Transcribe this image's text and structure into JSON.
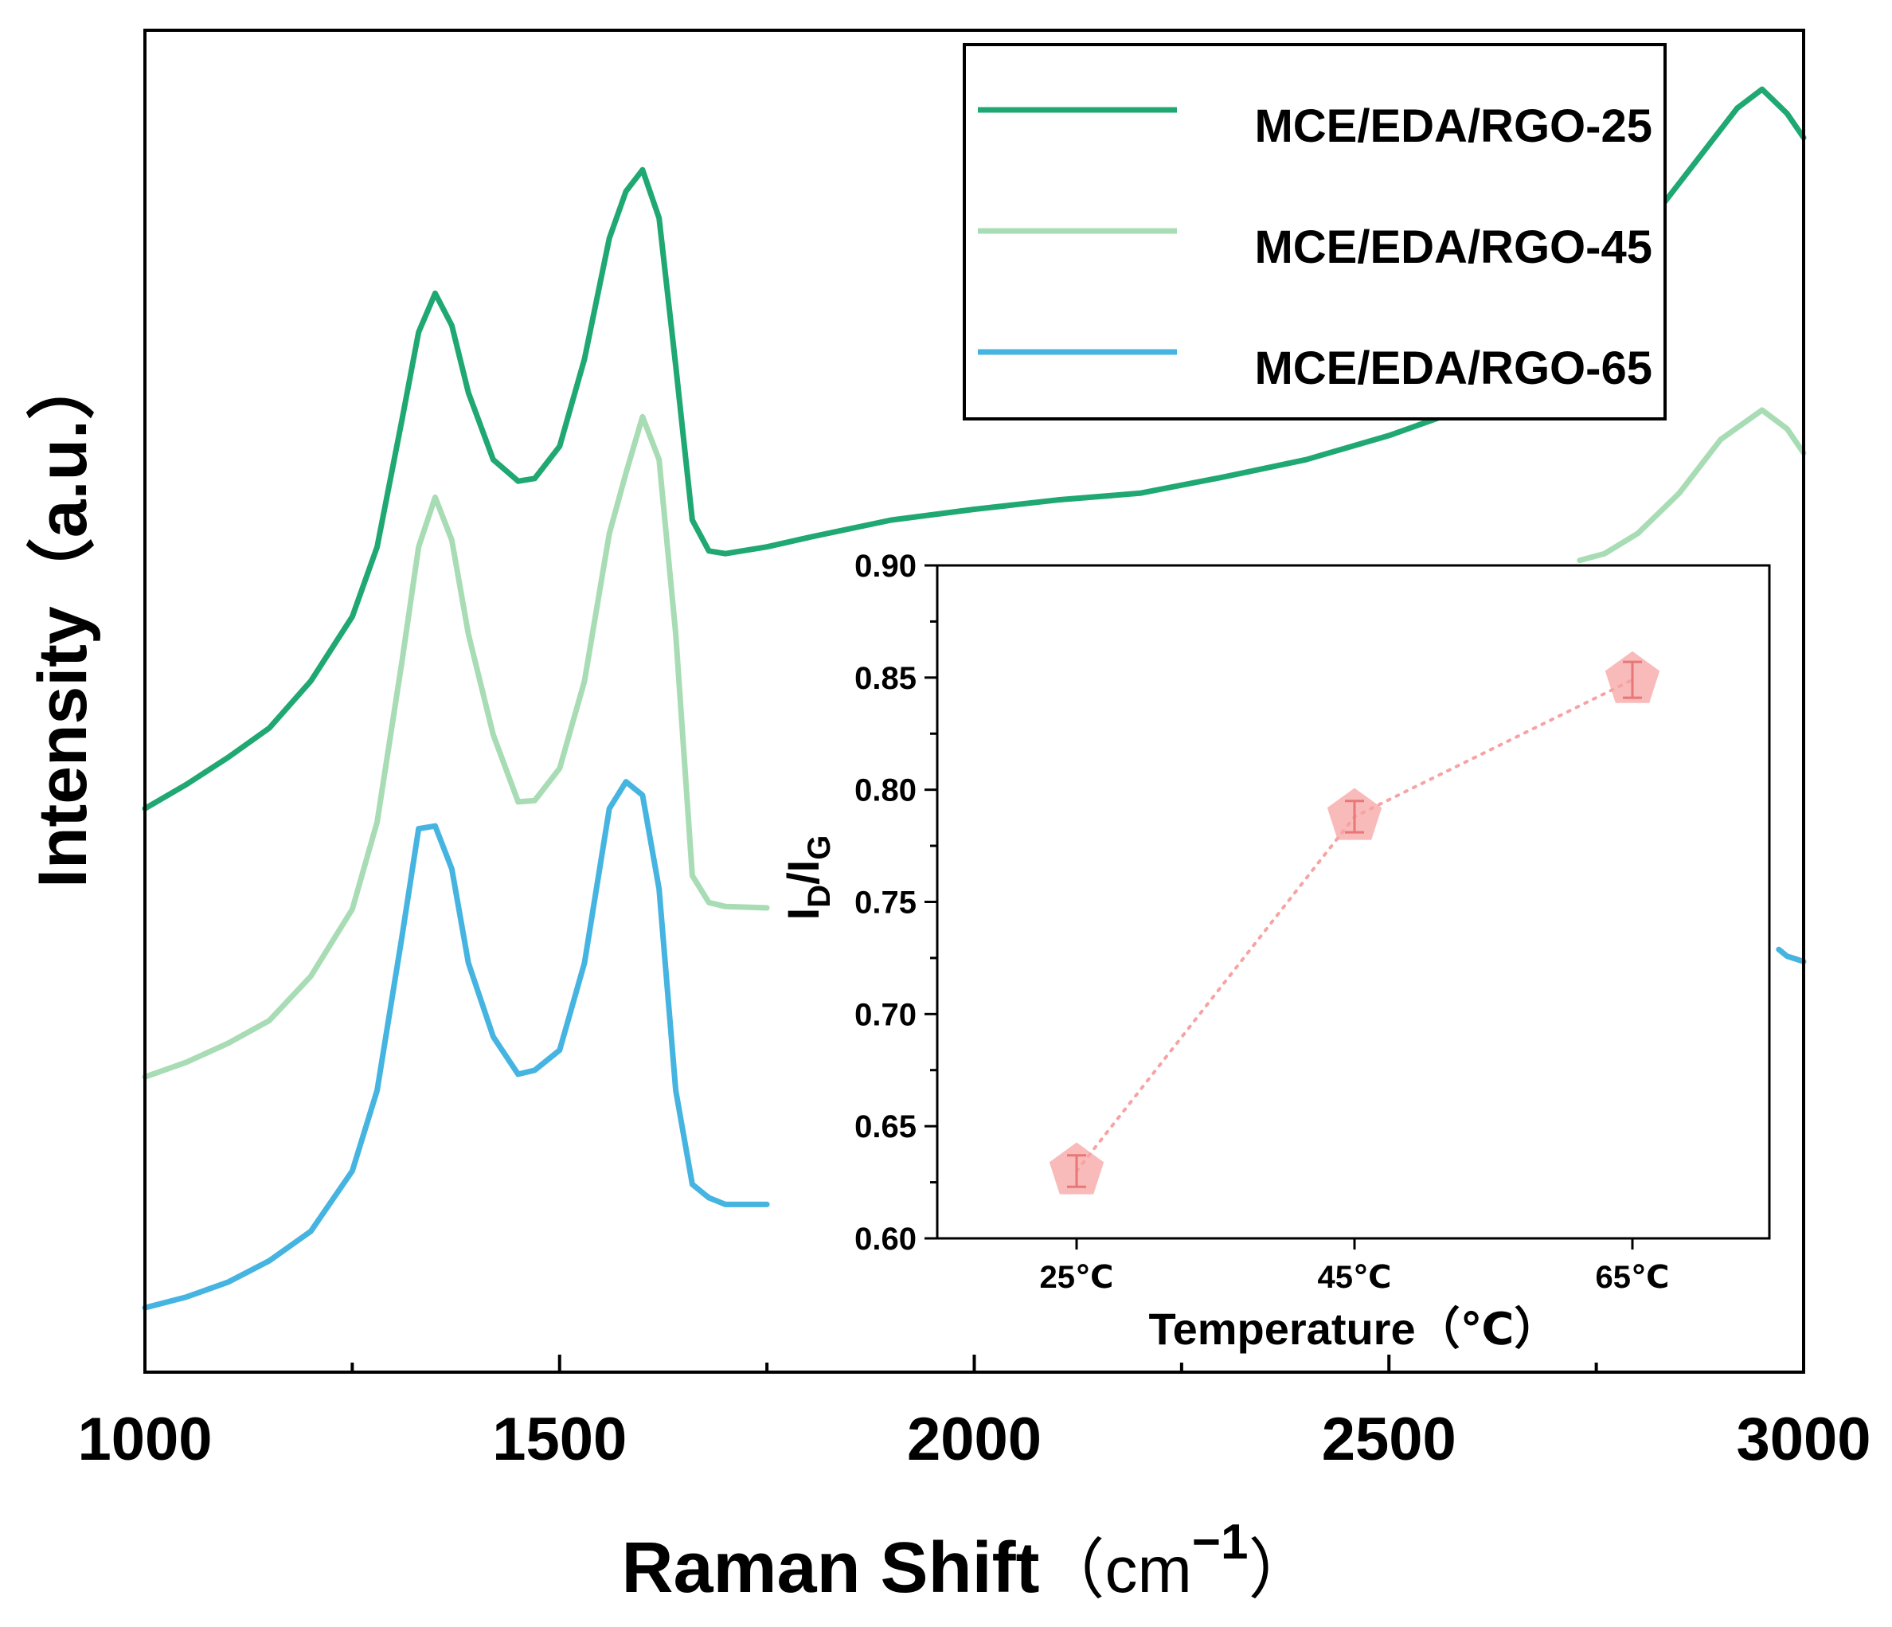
{
  "chart_data": [
    {
      "type": "line",
      "title": "",
      "xlabel": "Raman Shift",
      "xlabel_unit": "（cm",
      "xlabel_unit_exp": "−1",
      "xlabel_unit_close": "）",
      "ylabel": "Intensity（a.u.）",
      "xlim": [
        1000,
        3000
      ],
      "ylim": [
        0,
        100
      ],
      "y_ticks_shown": false,
      "grid": false,
      "legend_placement": "top-right",
      "x_ticks": [
        1000,
        1500,
        2000,
        2500,
        3000
      ],
      "x_tick_labels": [
        "1000",
        "1500",
        "2000",
        "2500",
        "3000"
      ],
      "x_minor_ticks": [
        1250,
        1750,
        2250,
        2750
      ],
      "series": [
        {
          "name": "MCE/EDA/RGO-25",
          "color": "#1fa872",
          "x": [
            1000,
            1050,
            1100,
            1150,
            1200,
            1250,
            1280,
            1310,
            1330,
            1350,
            1370,
            1390,
            1420,
            1450,
            1470,
            1500,
            1530,
            1560,
            1580,
            1600,
            1620,
            1640,
            1660,
            1680,
            1700,
            1750,
            1800,
            1900,
            2000,
            2100,
            2200,
            2300,
            2400,
            2500,
            2600,
            2700,
            2780,
            2830,
            2880,
            2920,
            2950,
            2980,
            3000
          ],
          "values": [
            42.0,
            43.8,
            45.8,
            48.0,
            51.5,
            56.3,
            61.5,
            71.0,
            77.5,
            80.4,
            78.0,
            73.0,
            68.0,
            66.4,
            66.6,
            69.0,
            75.5,
            84.5,
            88.0,
            89.6,
            86.0,
            75.0,
            63.5,
            61.2,
            61.0,
            61.5,
            62.2,
            63.5,
            64.3,
            65.0,
            65.5,
            66.7,
            68.0,
            69.8,
            72.0,
            76.5,
            81.5,
            87.0,
            91.0,
            94.2,
            95.6,
            93.8,
            92.0
          ]
        },
        {
          "name": "MCE/EDA/RGO-45",
          "color": "#a8dcb4",
          "x": [
            1000,
            1050,
            1100,
            1150,
            1200,
            1250,
            1280,
            1310,
            1330,
            1350,
            1370,
            1390,
            1420,
            1450,
            1470,
            1500,
            1530,
            1560,
            1580,
            1600,
            1620,
            1640,
            1660,
            1680,
            1700,
            1750,
            2730,
            2760,
            2800,
            2850,
            2900,
            2950,
            2980,
            3000
          ],
          "values": [
            22.0,
            23.1,
            24.5,
            26.2,
            29.5,
            34.5,
            41.0,
            53.0,
            61.5,
            65.2,
            62.0,
            55.0,
            47.5,
            42.5,
            42.6,
            45.0,
            51.5,
            62.5,
            67.0,
            71.2,
            68.0,
            55.0,
            37.0,
            35.0,
            34.7,
            34.6,
            60.5,
            61.0,
            62.5,
            65.5,
            69.5,
            71.7,
            70.3,
            68.5
          ]
        },
        {
          "name": "MCE/EDA/RGO-65",
          "color": "#45b4e0",
          "x": [
            1000,
            1050,
            1100,
            1150,
            1200,
            1250,
            1280,
            1310,
            1330,
            1350,
            1370,
            1390,
            1420,
            1450,
            1470,
            1500,
            1530,
            1560,
            1580,
            1600,
            1620,
            1640,
            1660,
            1680,
            1700,
            1750,
            2970,
            2980,
            2990,
            3000
          ],
          "values": [
            4.8,
            5.6,
            6.7,
            8.3,
            10.5,
            15.0,
            21.0,
            32.5,
            40.5,
            40.7,
            37.5,
            30.5,
            25.0,
            22.2,
            22.5,
            24.0,
            30.5,
            42.0,
            44.0,
            43.0,
            36.0,
            21.0,
            14.0,
            13.0,
            12.5,
            12.5,
            31.5,
            31.0,
            30.8,
            30.6
          ]
        }
      ]
    },
    {
      "type": "scatter",
      "title": "",
      "xlabel": "Temperature（℃）",
      "ylabel": "I",
      "ylabel_sub1": "D",
      "ylabel_slash": "/I",
      "ylabel_sub2": "G",
      "categories": [
        "25℃",
        "45℃",
        "65℃"
      ],
      "ylim": [
        0.6,
        0.9
      ],
      "y_ticks": [
        0.6,
        0.65,
        0.7,
        0.75,
        0.8,
        0.85,
        0.9
      ],
      "y_tick_labels": [
        "0.60",
        "0.65",
        "0.70",
        "0.75",
        "0.80",
        "0.85",
        "0.90"
      ],
      "grid": false,
      "connector": "dotted",
      "color": "#f7a3a3",
      "error_color": "#e87777",
      "series": [
        {
          "values": [
            0.63,
            0.788,
            0.849
          ],
          "errors": [
            0.007,
            0.007,
            0.008
          ]
        }
      ]
    }
  ],
  "legend": {
    "items": [
      {
        "label": "MCE/EDA/RGO-25",
        "color": "#1fa872"
      },
      {
        "label": "MCE/EDA/RGO-45",
        "color": "#a8dcb4"
      },
      {
        "label": "MCE/EDA/RGO-65",
        "color": "#45b4e0"
      }
    ]
  }
}
